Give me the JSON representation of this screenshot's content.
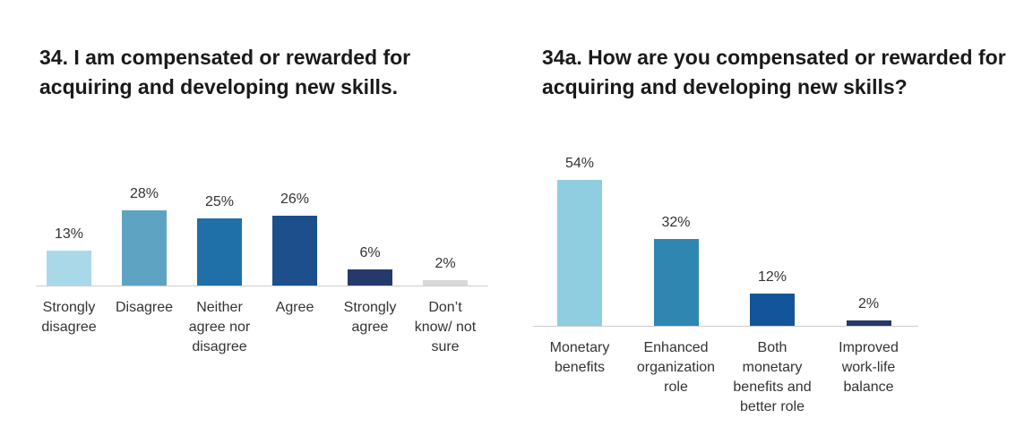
{
  "chart_data": [
    {
      "type": "bar",
      "title": "34. I am compensated or rewarded for acquiring and developing new skills.",
      "categories": [
        "Strongly disagree",
        "Disagree",
        "Neither agree nor disagree",
        "Agree",
        "Strongly agree",
        "Don’t know/ not sure"
      ],
      "values": [
        13,
        28,
        25,
        26,
        6,
        2
      ],
      "value_labels": [
        "13%",
        "28%",
        "25%",
        "26%",
        "6%",
        "2%"
      ],
      "colors": [
        "#a9d9e8",
        "#5ea4c2",
        "#1f70a9",
        "#1c4f8b",
        "#25396a",
        "#d9d9d9"
      ]
    },
    {
      "type": "bar",
      "title": "34a. How are you compensated or rewarded for acquiring and developing new skills?",
      "categories": [
        "Monetary benefits",
        "Enhanced organization role",
        "Both monetary benefits and better role",
        "Improved work-life balance"
      ],
      "values": [
        54,
        32,
        12,
        2
      ],
      "value_labels": [
        "54%",
        "32%",
        "12%",
        "2%"
      ],
      "colors": [
        "#8fcee1",
        "#2f87b1",
        "#13559b",
        "#25396a"
      ]
    }
  ]
}
